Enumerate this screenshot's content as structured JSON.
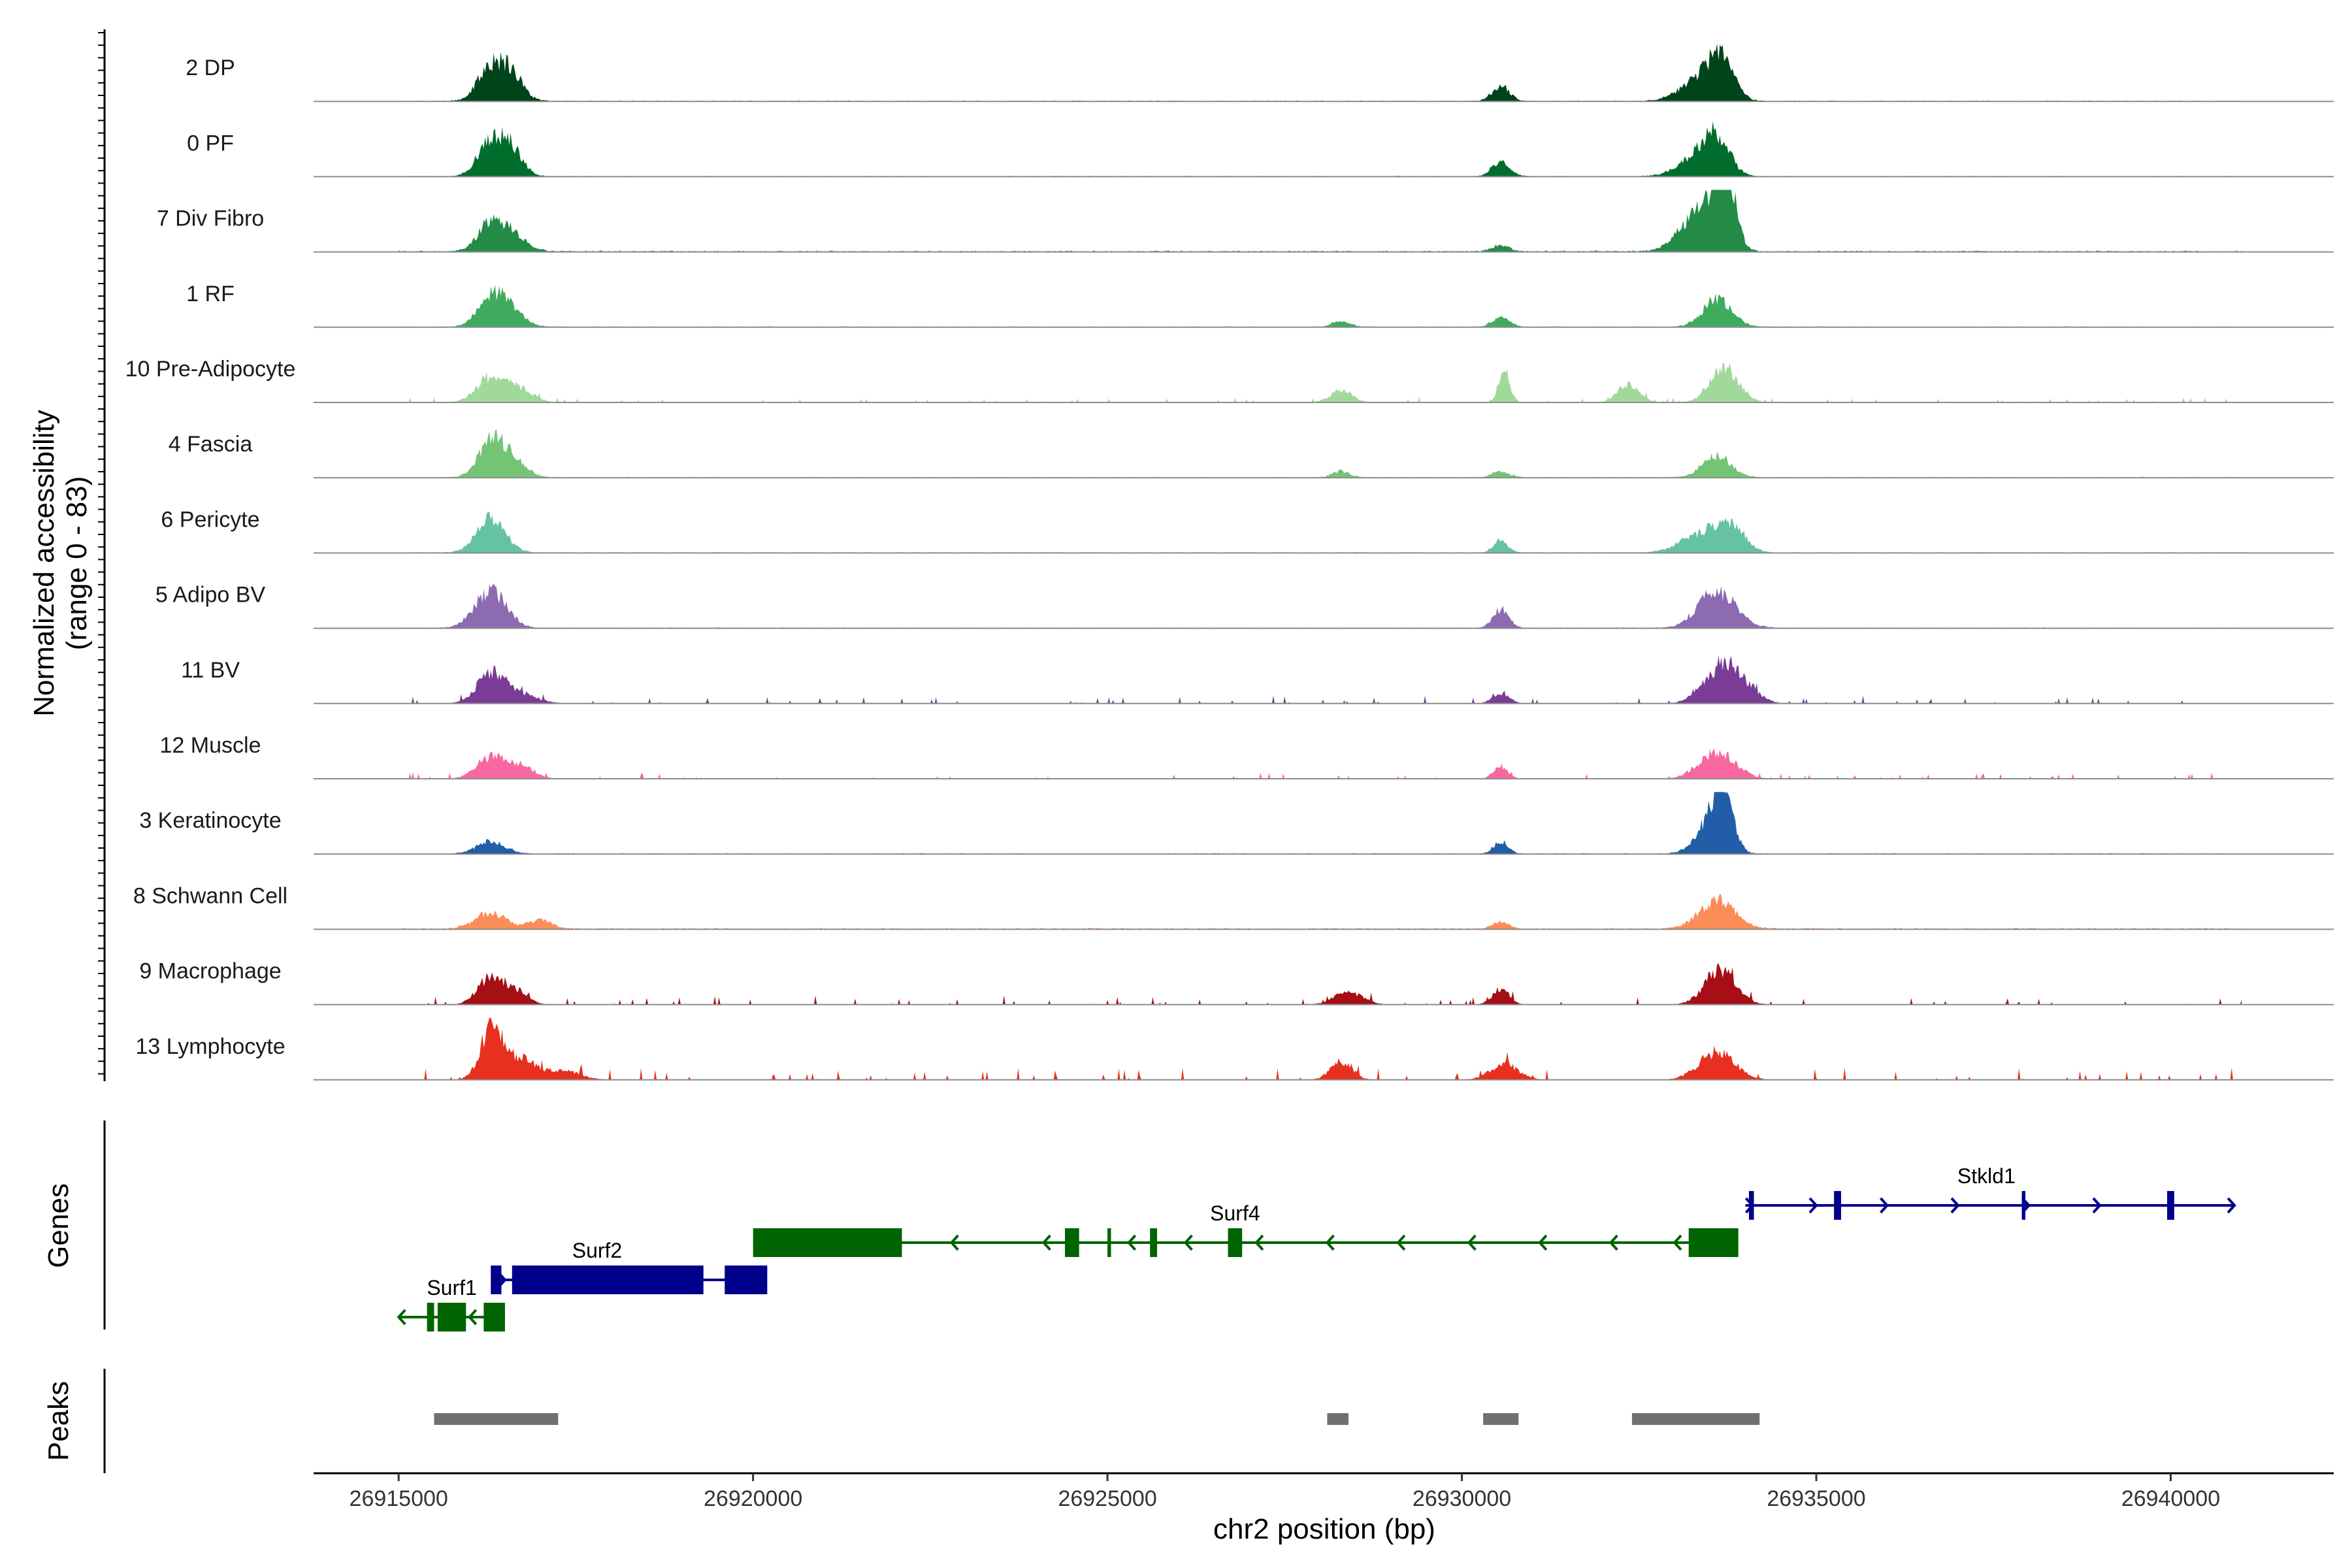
{
  "chart_data": {
    "type": "area",
    "title": "",
    "xlabel": "chr2 position (bp)",
    "ylabel_line1": "Normalized accessibility",
    "ylabel_line2": "(range 0 - 83)",
    "y_range": [
      0,
      83
    ],
    "xlim": [
      26913800,
      26942300
    ],
    "x_ticks": [
      26915000,
      26920000,
      26925000,
      26930000,
      26935000,
      26940000
    ],
    "x_tick_labels": [
      "26915000",
      "26920000",
      "26925000",
      "26930000",
      "26935000",
      "26940000"
    ],
    "tracks": [
      {
        "name": "2 DP",
        "color": "#00441b",
        "noise": 0.05,
        "sparse": false,
        "peaks": [
          [
            26916300,
            180,
            0.55
          ],
          [
            26916600,
            160,
            0.4
          ],
          [
            26930550,
            120,
            0.25
          ],
          [
            26933300,
            250,
            0.3
          ],
          [
            26933650,
            180,
            0.65
          ]
        ]
      },
      {
        "name": "0 PF",
        "color": "#006d2c",
        "noise": 0.05,
        "sparse": false,
        "peaks": [
          [
            26916300,
            180,
            0.55
          ],
          [
            26916600,
            160,
            0.4
          ],
          [
            26930550,
            120,
            0.25
          ],
          [
            26933300,
            250,
            0.3
          ],
          [
            26933600,
            180,
            0.55
          ]
        ]
      },
      {
        "name": "7 Div Fibro",
        "color": "#238b45",
        "noise": 0.08,
        "sparse": false,
        "peaks": [
          [
            26916300,
            180,
            0.45
          ],
          [
            26916600,
            200,
            0.25
          ],
          [
            26930550,
            120,
            0.1
          ],
          [
            26933200,
            220,
            0.4
          ],
          [
            26933550,
            200,
            0.75
          ],
          [
            26933750,
            120,
            0.85
          ]
        ]
      },
      {
        "name": "1 RF",
        "color": "#41ab5d",
        "noise": 0.05,
        "sparse": false,
        "peaks": [
          [
            26916300,
            180,
            0.5
          ],
          [
            26916600,
            180,
            0.25
          ],
          [
            26928300,
            120,
            0.1
          ],
          [
            26930550,
            120,
            0.15
          ],
          [
            26933600,
            200,
            0.45
          ]
        ]
      },
      {
        "name": "10 Pre-Adipocyte",
        "color": "#a1d99b",
        "noise": 0.08,
        "sparse": true,
        "peaks": [
          [
            26916300,
            200,
            0.4
          ],
          [
            26916700,
            200,
            0.2
          ],
          [
            26928300,
            150,
            0.2
          ],
          [
            26930600,
            80,
            0.45
          ],
          [
            26932350,
            150,
            0.3
          ],
          [
            26933700,
            200,
            0.55
          ]
        ]
      },
      {
        "name": "4 Fascia",
        "color": "#74c476",
        "noise": 0.05,
        "sparse": false,
        "peaks": [
          [
            26916300,
            180,
            0.55
          ],
          [
            26916600,
            180,
            0.3
          ],
          [
            26928300,
            120,
            0.1
          ],
          [
            26930550,
            120,
            0.1
          ],
          [
            26933600,
            200,
            0.35
          ]
        ]
      },
      {
        "name": "6 Pericyte",
        "color": "#66c2a4",
        "noise": 0.05,
        "sparse": false,
        "peaks": [
          [
            26916300,
            200,
            0.55
          ],
          [
            26930550,
            100,
            0.2
          ],
          [
            26933400,
            300,
            0.3
          ],
          [
            26933800,
            200,
            0.35
          ]
        ]
      },
      {
        "name": "5 Adipo BV",
        "color": "#8c6bb1",
        "noise": 0.05,
        "sparse": false,
        "peaks": [
          [
            26916300,
            220,
            0.6
          ],
          [
            26930550,
            110,
            0.3
          ],
          [
            26933600,
            260,
            0.6
          ]
        ]
      },
      {
        "name": "11 BV",
        "color": "#7a3c96",
        "noise": 0.12,
        "sparse": true,
        "peaks": [
          [
            26916300,
            200,
            0.45
          ],
          [
            26916700,
            250,
            0.15
          ],
          [
            26930550,
            120,
            0.15
          ],
          [
            26933650,
            250,
            0.55
          ],
          [
            26934000,
            200,
            0.2
          ]
        ]
      },
      {
        "name": "12 Muscle",
        "color": "#f768a1",
        "noise": 0.1,
        "sparse": true,
        "peaks": [
          [
            26916300,
            200,
            0.35
          ],
          [
            26916700,
            200,
            0.2
          ],
          [
            26930550,
            100,
            0.2
          ],
          [
            26933600,
            250,
            0.45
          ]
        ]
      },
      {
        "name": "3 Keratinocyte",
        "color": "#225ea8",
        "noise": 0.05,
        "sparse": false,
        "peaks": [
          [
            26916300,
            200,
            0.2
          ],
          [
            26930550,
            100,
            0.2
          ],
          [
            26933500,
            200,
            0.5
          ],
          [
            26933700,
            130,
            0.85
          ]
        ]
      },
      {
        "name": "8 Schwann Cell",
        "color": "#fc8d59",
        "noise": 0.08,
        "sparse": false,
        "peaks": [
          [
            26916300,
            220,
            0.25
          ],
          [
            26917000,
            150,
            0.15
          ],
          [
            26930550,
            120,
            0.1
          ],
          [
            26933600,
            250,
            0.45
          ]
        ]
      },
      {
        "name": "9 Macrophage",
        "color": "#a50f15",
        "noise": 0.14,
        "sparse": true,
        "peaks": [
          [
            26916300,
            180,
            0.45
          ],
          [
            26916700,
            150,
            0.2
          ],
          [
            26928400,
            200,
            0.2
          ],
          [
            26930550,
            120,
            0.25
          ],
          [
            26933650,
            220,
            0.55
          ]
        ]
      },
      {
        "name": "13 Lymphocyte",
        "color": "#e7301f",
        "noise": 0.18,
        "sparse": true,
        "peaks": [
          [
            26916300,
            150,
            0.8
          ],
          [
            26916700,
            200,
            0.35
          ],
          [
            26917300,
            250,
            0.15
          ],
          [
            26928300,
            150,
            0.3
          ],
          [
            26930600,
            200,
            0.25
          ],
          [
            26933600,
            250,
            0.45
          ]
        ]
      }
    ],
    "genes_label": "Genes",
    "genes": [
      {
        "name": "Surf1",
        "color": "#006400",
        "strand": "-",
        "row": 3,
        "line": [
          26915000,
          26916500
        ],
        "exons": [
          [
            26915400,
            26915500
          ],
          [
            26915550,
            26915950
          ],
          [
            26916200,
            26916500
          ]
        ],
        "label_x": 26915750,
        "arrows": [
          26915000,
          26916000
        ]
      },
      {
        "name": "Surf2",
        "color": "#00008b",
        "strand": "+",
        "row": 2,
        "line": [
          26916300,
          26920200
        ],
        "exons": [
          [
            26916300,
            26916450
          ],
          [
            26916600,
            26919300
          ],
          [
            26919600,
            26920200
          ]
        ],
        "label_x": 26917800,
        "arrows": [
          26916500,
          26920150
        ]
      },
      {
        "name": "Surf4",
        "color": "#006400",
        "strand": "-",
        "row": 1,
        "line": [
          26920000,
          26933900
        ],
        "exons": [
          [
            26920000,
            26922100
          ],
          [
            26924400,
            26924600
          ],
          [
            26925000,
            26925050
          ],
          [
            26925600,
            26925700
          ],
          [
            26926700,
            26926900
          ],
          [
            26933200,
            26933900
          ]
        ],
        "label_x": 26926800,
        "arrows": [
          26922800,
          26924100,
          26925300,
          26926100,
          26927100,
          26928100,
          26929100,
          26930100,
          26931100,
          26932100,
          26933000
        ]
      },
      {
        "name": "Stkld1",
        "color": "#00008b",
        "strand": "+",
        "row": 0,
        "line": [
          26934000,
          26940900
        ],
        "exons": [
          [
            26934050,
            26934120
          ],
          [
            26935250,
            26935350
          ],
          [
            26937900,
            26937950
          ],
          [
            26939950,
            26940050
          ]
        ],
        "label_x": 26937400,
        "arrows": [
          26934100,
          26935000,
          26936000,
          26937000,
          26938000,
          26939000,
          26940900
        ]
      }
    ],
    "peaks_label": "Peaks",
    "peak_regions": [
      [
        26915500,
        26917250
      ],
      [
        26928100,
        26928400
      ],
      [
        26930300,
        26930800
      ],
      [
        26932400,
        26934200
      ]
    ]
  }
}
